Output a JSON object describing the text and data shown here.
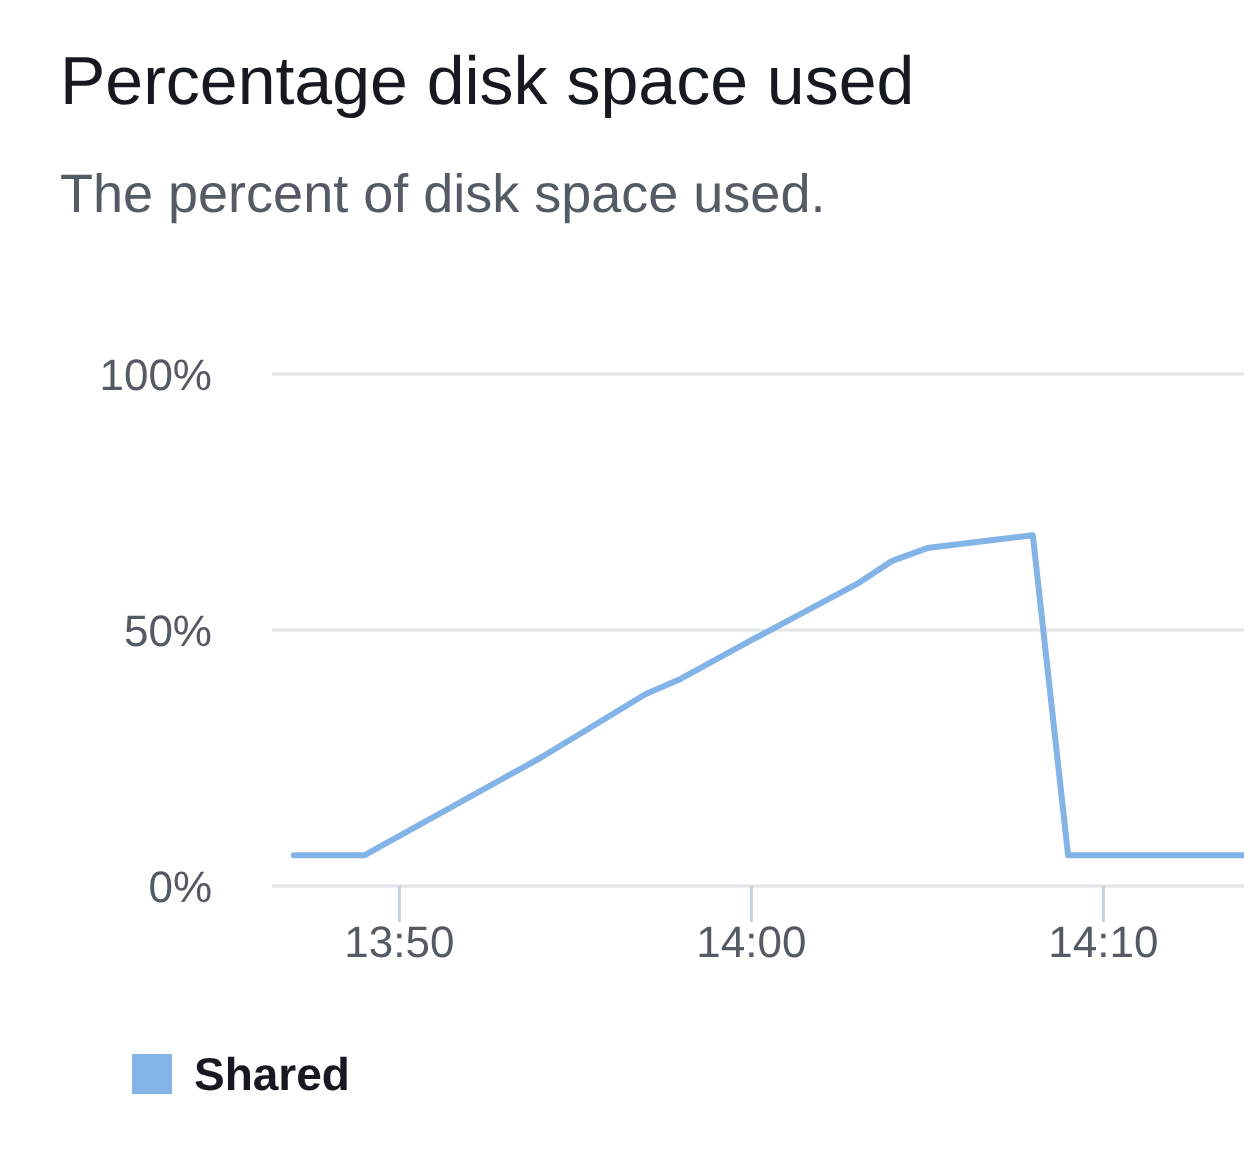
{
  "chart_data": {
    "type": "line",
    "title": "Percentage disk space used",
    "subtitle": "The percent of disk space used.",
    "x": [
      13.7833,
      13.8167,
      13.9,
      13.95,
      13.9667,
      14,
      14.05,
      14.0667,
      14.0833,
      14.1333,
      14.15,
      14.2333
    ],
    "series": [
      {
        "name": "Shared",
        "color": "#82b4e8",
        "values": [
          6,
          6,
          25,
          37.5,
          40.5,
          48,
          59,
          63.5,
          66,
          68.5,
          6,
          6
        ]
      }
    ],
    "xlim": [
      13.773,
      14.2333
    ],
    "xticks": [
      {
        "value": 13.8333,
        "label": "13:50"
      },
      {
        "value": 14,
        "label": "14:00"
      },
      {
        "value": 14.1667,
        "label": "14:10"
      }
    ],
    "ylim": [
      0,
      100
    ],
    "yticks": [
      {
        "value": 0,
        "label": "0%"
      },
      {
        "value": 50,
        "label": "50%"
      },
      {
        "value": 100,
        "label": "100%"
      }
    ],
    "grid": "y",
    "legend": "bottom left"
  }
}
